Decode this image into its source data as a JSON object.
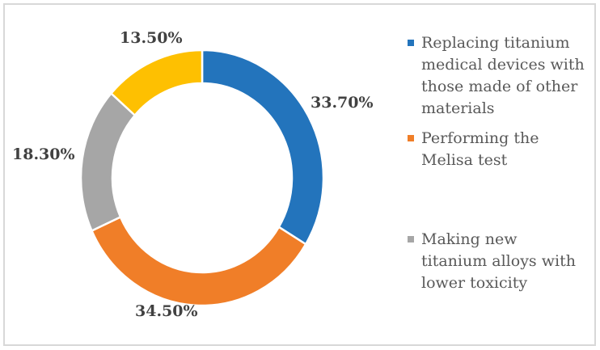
{
  "figure": {
    "kind": "donut-chart-figure",
    "background": "#ffffff",
    "frame_color": "#d8d8d8"
  },
  "chart_data": {
    "type": "pie",
    "subtype": "donut",
    "title": "",
    "legend_position": "right",
    "start_angle_deg": 0,
    "direction": "clockwise",
    "units": "%",
    "slices": [
      {
        "name": "Replacing titanium medical devices with those made of other materials",
        "value": 33.7,
        "display": "33.70%",
        "color": "#2374BC"
      },
      {
        "name": "Performing the Melisa test",
        "value": 34.5,
        "display": "34.50%",
        "color": "#F07E28"
      },
      {
        "name": "Making new titanium alloys with lower toxicity",
        "value": 18.3,
        "display": "18.30%",
        "color": "#A6A6A6"
      },
      {
        "name": "",
        "value": 13.5,
        "display": "13.50%",
        "color": "#FEC001"
      }
    ],
    "visible_legend_slice_indexes": [
      0,
      1,
      2
    ],
    "label_color": "#414141",
    "legend_text_color": "#595959"
  }
}
